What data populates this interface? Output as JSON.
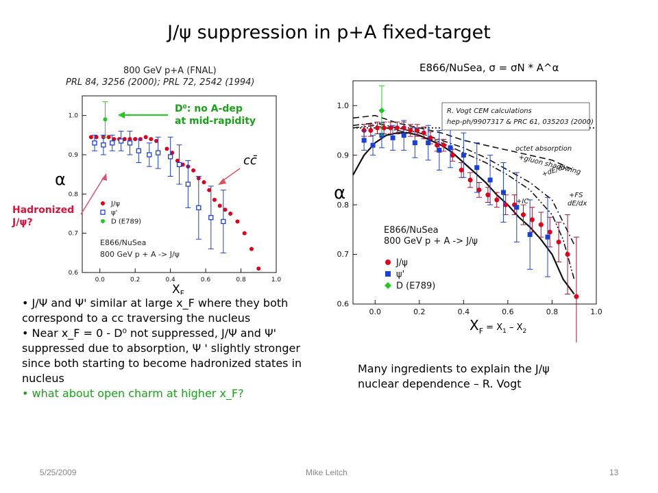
{
  "slide": {
    "title": "J/ψ suppression in p+A fixed-target",
    "left_source_line1": "800 GeV p+A (FNAL)",
    "left_source_line2": "PRL 84, 3256 (2000); PRL 72, 2542 (1994)",
    "annot_d0_line1": "D⁰: no A-dep",
    "annot_d0_line2": "at mid-rapidity",
    "annot_hadronized_line1": "Hadronized",
    "annot_hadronized_line2": "J/ψ?",
    "bullet1": "J/Ψ and Ψ' similar at large x_F where they both correspond to a cc traversing the nucleus",
    "bullet2": "Near x_F = 0 - D⁰ not suppressed, J/Ψ and Ψ' suppressed due to absorption, Ψ ' slightly stronger since both starting to become hadronized states in nucleus",
    "bullet3": "what about open charm at higher x_F?",
    "right_caption": "Many ingredients to explain the J/ψ nuclear dependence – R. Vogt",
    "footer_date": "5/25/2009",
    "footer_author": "Mike Leitch",
    "footer_page": "13",
    "colors": {
      "red": "#e0001a",
      "blue": "#1a3fd6",
      "green": "#1ecb1e",
      "crimson": "#a01530"
    }
  },
  "chart_data": [
    {
      "type": "scatter",
      "title": "",
      "xlabel": "XF",
      "ylabel": "α",
      "xlim": [
        -0.1,
        1.0
      ],
      "ylim": [
        0.6,
        1.05
      ],
      "xticks": [
        "0.0",
        "0.2",
        "0.4",
        "0.6",
        "0.8",
        "1.0"
      ],
      "yticks": [
        "0.6",
        "0.7",
        "0.8",
        "0.9",
        "1.0"
      ],
      "legend": [
        "J/ψ",
        "ψ'",
        "D (E789)"
      ],
      "legend_note_line1": "E866/NuSea",
      "legend_note_line2": "800 GeV p + A -> J/ψ",
      "annotation": "cc̄",
      "series": [
        {
          "name": "J/ψ",
          "color": "#e0001a",
          "marker": "circle",
          "x": [
            -0.05,
            -0.02,
            0.02,
            0.05,
            0.08,
            0.11,
            0.14,
            0.17,
            0.2,
            0.23,
            0.26,
            0.29,
            0.32,
            0.38,
            0.41,
            0.44,
            0.47,
            0.5,
            0.53,
            0.56,
            0.59,
            0.62,
            0.65,
            0.68,
            0.71,
            0.74,
            0.78,
            0.82,
            0.86,
            0.9
          ],
          "y": [
            0.945,
            0.945,
            0.945,
            0.945,
            0.94,
            0.94,
            0.94,
            0.94,
            0.94,
            0.94,
            0.945,
            0.94,
            0.935,
            0.915,
            0.905,
            0.885,
            0.875,
            0.87,
            0.86,
            0.84,
            0.83,
            0.81,
            0.785,
            0.77,
            0.76,
            0.75,
            0.73,
            0.7,
            0.66,
            0.61
          ]
        },
        {
          "name": "ψ'",
          "color": "#1a3fd6",
          "marker": "open-square",
          "x": [
            -0.03,
            0.02,
            0.07,
            0.12,
            0.17,
            0.22,
            0.28,
            0.33,
            0.4,
            0.45,
            0.5,
            0.56,
            0.63,
            0.7
          ],
          "y": [
            0.93,
            0.925,
            0.93,
            0.935,
            0.93,
            0.91,
            0.9,
            0.905,
            0.895,
            0.875,
            0.825,
            0.765,
            0.74,
            0.73
          ],
          "err": [
            0.02,
            0.025,
            0.02,
            0.025,
            0.03,
            0.03,
            0.03,
            0.04,
            0.05,
            0.05,
            0.06,
            0.08,
            0.08,
            0.08
          ]
        },
        {
          "name": "D (E789)",
          "color": "#1ecb1e",
          "marker": "circle",
          "x": [
            0.03
          ],
          "y": [
            0.99
          ],
          "err": [
            0.045
          ]
        }
      ]
    },
    {
      "type": "line",
      "title": "E866/NuSea, σ = σN * A^α",
      "xlabel": "XF = X1 – X2",
      "ylabel": "α",
      "xlim": [
        -0.1,
        1.0
      ],
      "ylim": [
        0.6,
        1.05
      ],
      "xticks": [
        "0.0",
        "0.2",
        "0.4",
        "0.6",
        "0.8",
        "1.0"
      ],
      "yticks": [
        "0.6",
        "0.7",
        "0.8",
        "0.9",
        "1.0"
      ],
      "legend": [
        "J/ψ",
        "ψ'",
        "D (E789)"
      ],
      "legend_note_line1": "E866/NuSea",
      "legend_note_line2": "800 GeV p + A -> J/ψ",
      "ref_line1": "R. Vogt CEM calculations",
      "ref_line2": "hep-ph/9907317 & PRC 61, 035203 (2000)",
      "curve_labels": [
        "octet absorption",
        "+gluon shadowing",
        "+dE/dx",
        "+IC",
        "+FS dE/dx"
      ],
      "series": [
        {
          "name": "J/ψ",
          "color": "#e0001a",
          "marker": "circle",
          "x": [
            -0.05,
            -0.02,
            0.01,
            0.04,
            0.07,
            0.1,
            0.13,
            0.16,
            0.19,
            0.22,
            0.25,
            0.28,
            0.31,
            0.35,
            0.39,
            0.43,
            0.47,
            0.51,
            0.55,
            0.59,
            0.63,
            0.67,
            0.71,
            0.75,
            0.79,
            0.83,
            0.87,
            0.91
          ],
          "y": [
            0.95,
            0.95,
            0.955,
            0.955,
            0.955,
            0.955,
            0.955,
            0.95,
            0.95,
            0.945,
            0.935,
            0.92,
            0.92,
            0.9,
            0.87,
            0.85,
            0.83,
            0.82,
            0.81,
            0.8,
            0.8,
            0.78,
            0.77,
            0.76,
            0.745,
            0.725,
            0.7,
            0.615
          ],
          "err": [
            0.012,
            0.012,
            0.012,
            0.012,
            0.012,
            0.012,
            0.012,
            0.012,
            0.012,
            0.012,
            0.012,
            0.012,
            0.012,
            0.012,
            0.015,
            0.015,
            0.015,
            0.015,
            0.015,
            0.02,
            0.02,
            0.02,
            0.025,
            0.025,
            0.03,
            0.04,
            0.08,
            0.12
          ]
        },
        {
          "name": "ψ'",
          "color": "#1a3fd6",
          "marker": "square",
          "x": [
            -0.05,
            -0.01,
            0.03,
            0.08,
            0.13,
            0.18,
            0.24,
            0.29,
            0.34,
            0.4,
            0.46,
            0.52,
            0.58,
            0.64,
            0.7,
            0.78
          ],
          "y": [
            0.93,
            0.92,
            0.94,
            0.935,
            0.94,
            0.925,
            0.925,
            0.91,
            0.915,
            0.9,
            0.875,
            0.85,
            0.825,
            0.795,
            0.74,
            0.735
          ],
          "err": [
            0.02,
            0.02,
            0.025,
            0.025,
            0.03,
            0.03,
            0.035,
            0.04,
            0.04,
            0.045,
            0.05,
            0.05,
            0.06,
            0.07,
            0.07,
            0.08
          ]
        },
        {
          "name": "D (E789)",
          "color": "#1ecb1e",
          "marker": "diamond",
          "x": [
            0.03
          ],
          "y": [
            0.99
          ],
          "err": [
            0.05
          ]
        },
        {
          "name": "octet absorption",
          "style": "dotted",
          "x": [
            -0.1,
            1.0
          ],
          "y": [
            0.955,
            0.955
          ]
        },
        {
          "name": "+gluon shadowing",
          "style": "dashed",
          "x": [
            -0.1,
            0.0,
            0.1,
            0.2,
            0.3,
            0.4,
            0.5,
            0.6,
            0.7,
            0.8,
            0.9
          ],
          "y": [
            0.975,
            0.98,
            0.965,
            0.955,
            0.945,
            0.93,
            0.92,
            0.91,
            0.9,
            0.89,
            0.87
          ]
        },
        {
          "name": "+dE/dx",
          "style": "dash-dot",
          "x": [
            -0.1,
            0.0,
            0.1,
            0.2,
            0.3,
            0.4,
            0.5,
            0.6,
            0.7,
            0.8,
            0.9
          ],
          "y": [
            0.96,
            0.965,
            0.955,
            0.945,
            0.93,
            0.915,
            0.895,
            0.87,
            0.845,
            0.81,
            0.72
          ]
        },
        {
          "name": "+IC",
          "style": "solid",
          "x": [
            -0.1,
            -0.05,
            0.0,
            0.05,
            0.1,
            0.15,
            0.2,
            0.25,
            0.3,
            0.35,
            0.4,
            0.45,
            0.5,
            0.55,
            0.6,
            0.65,
            0.7,
            0.75,
            0.8,
            0.85,
            0.9
          ],
          "y": [
            0.86,
            0.9,
            0.925,
            0.94,
            0.945,
            0.945,
            0.94,
            0.93,
            0.92,
            0.905,
            0.885,
            0.865,
            0.845,
            0.82,
            0.8,
            0.775,
            0.755,
            0.73,
            0.7,
            0.65,
            0.62
          ]
        },
        {
          "name": "+FS dE/dx",
          "style": "dash-dot-dot",
          "x": [
            -0.1,
            0.0,
            0.1,
            0.2,
            0.3,
            0.4,
            0.5,
            0.6,
            0.7,
            0.8,
            0.85,
            0.9
          ],
          "y": [
            0.955,
            0.96,
            0.95,
            0.94,
            0.925,
            0.905,
            0.885,
            0.86,
            0.83,
            0.78,
            0.73,
            0.65
          ]
        }
      ]
    }
  ]
}
